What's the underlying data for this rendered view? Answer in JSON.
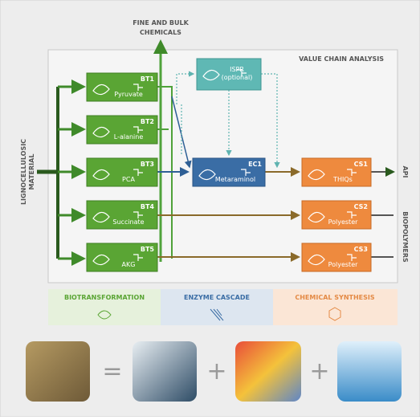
{
  "diagram": {
    "top_label": [
      "FINE AND BULK",
      "CHEMICALS"
    ],
    "frame_label": "VALUE CHAIN ANALYSIS",
    "input_label": [
      "LIGNOCELLULOSIC",
      "MATERIAL"
    ],
    "nodes": [
      {
        "code": "BT1",
        "label": "Pyruvate"
      },
      {
        "code": "BT2",
        "label": "L-alanine"
      },
      {
        "code": "BT3",
        "label": "PCA"
      },
      {
        "code": "BT4",
        "label": "Succinate"
      },
      {
        "code": "BT5",
        "label": "AKG"
      },
      {
        "code": "",
        "label": [
          "ISPR",
          "(optional)"
        ]
      },
      {
        "code": "EC1",
        "label": "Metaraminol"
      },
      {
        "code": "CS1",
        "label": "THIQs"
      },
      {
        "code": "CS2",
        "label": "Polyester"
      },
      {
        "code": "CS3",
        "label": "Polyester"
      }
    ],
    "outputs": [
      "API",
      "BIOPOLYMERS"
    ],
    "legend": [
      "BIOTRANSFORMATION",
      "ENZYME CASCADE",
      "CHEMICAL SYNTHESIS"
    ],
    "operators": [
      "=",
      "+",
      "+"
    ]
  }
}
